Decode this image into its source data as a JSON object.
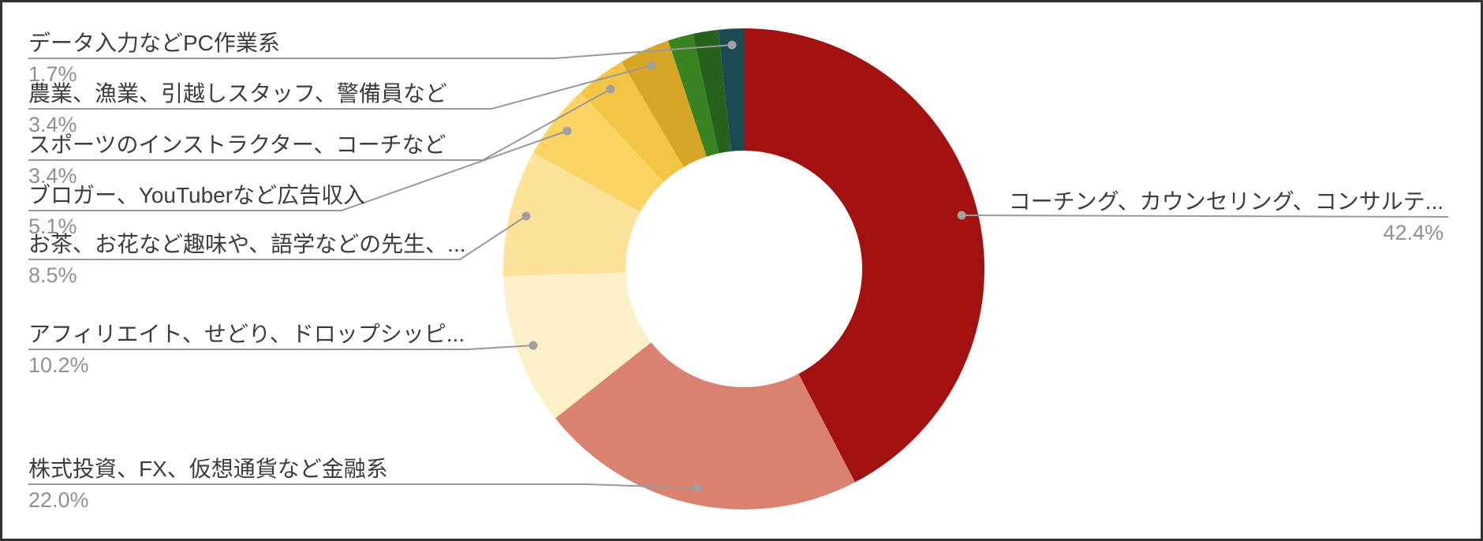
{
  "chart_data": {
    "type": "donut",
    "unit": "%",
    "title": "",
    "legend": "none (leader-line callouts)",
    "slices": [
      {
        "label": "コーチング、カウンセリング、コンサルテ...",
        "pct_text": "42.4%",
        "value": 42.4,
        "color": "#A31010",
        "labeled": true
      },
      {
        "label": "株式投資、FX、仮想通貨など金融系",
        "pct_text": "22.0%",
        "value": 22.0,
        "color": "#DB8170",
        "labeled": true
      },
      {
        "label": "アフィリエイト、せどり、ドロップシッピ...",
        "pct_text": "10.2%",
        "value": 10.2,
        "color": "#FBF0C7",
        "labeled": true
      },
      {
        "label": "お茶、お花など趣味や、語学などの先生、...",
        "pct_text": "8.5%",
        "value": 8.5,
        "color": "#FDE29A",
        "labeled": true
      },
      {
        "label": "ブロガー、YouTuberなど広告収入",
        "pct_text": "5.1%",
        "value": 5.1,
        "color": "#FBD464",
        "labeled": true
      },
      {
        "label": "スポーツのインストラクター、コーチなど",
        "pct_text": "3.4%",
        "value": 3.4,
        "color": "#F2C644",
        "labeled": true
      },
      {
        "label": "農業、漁業、引越しスタッフ、警備員など",
        "pct_text": "3.4%",
        "value": 3.4,
        "color": "#D7A626",
        "labeled": true
      },
      {
        "label": "",
        "pct_text": "",
        "value": 1.7,
        "color": "#3A8323",
        "labeled": false
      },
      {
        "label": "",
        "pct_text": "",
        "value": 1.7,
        "color": "#26611E",
        "labeled": false
      },
      {
        "label": "データ入力などPC作業系",
        "pct_text": "1.7%",
        "value": 1.7,
        "color": "#1B4A53",
        "labeled": true
      }
    ]
  },
  "colors": {
    "background": "#ffffff",
    "frame": "#333333",
    "label_text": "#3d3d3d",
    "percent_text": "#909090",
    "leader_line": "#999999",
    "leader_dot": "#a0a0a0",
    "donut_hole": "#ffffff"
  }
}
